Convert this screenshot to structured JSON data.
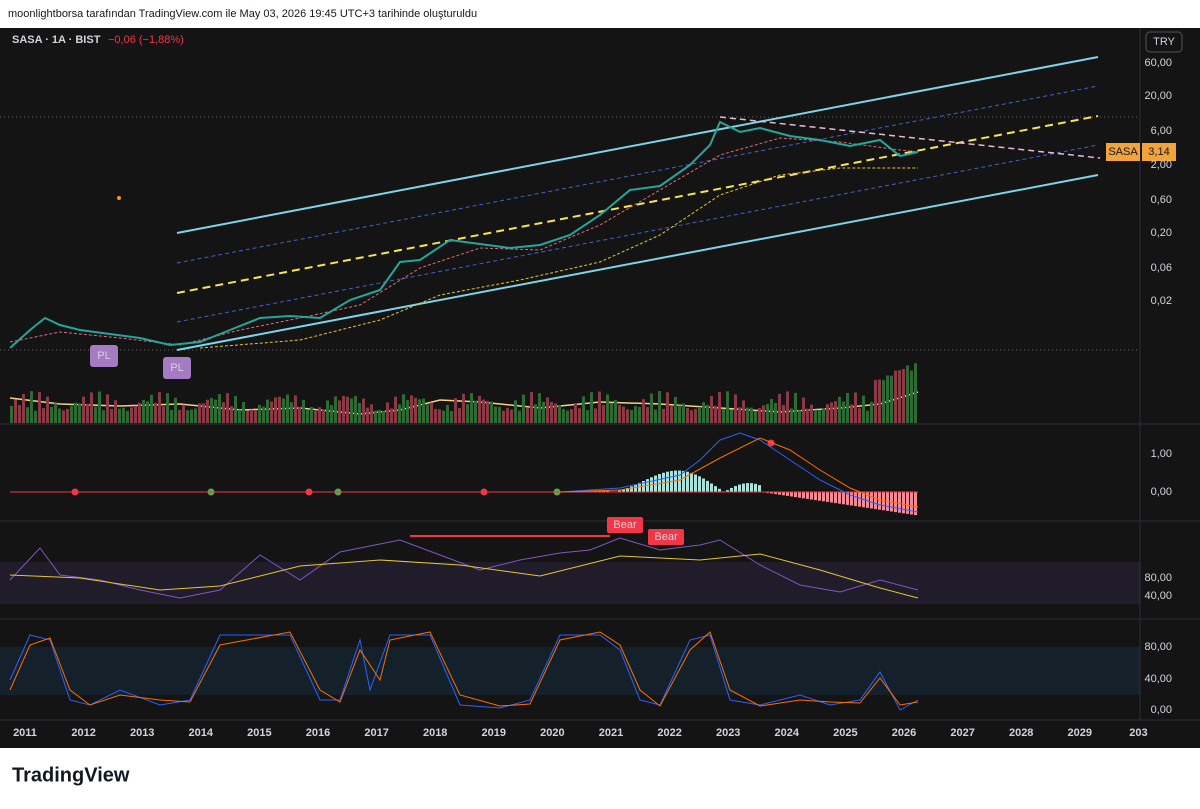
{
  "header": {
    "caption": "moonlightborsa tarafından TradingView.com ile May 03, 2026 19:45 UTC+3 tarihinde oluşturuldu"
  },
  "symbol": {
    "name": "SASA · 1A · BIST",
    "change": "−0,06 (−1,88%)"
  },
  "currency": "TRY",
  "price_axis": [
    "60,00",
    "20,00",
    "6,00",
    "2,00",
    "0,60",
    "0,20",
    "0,06",
    "0,02"
  ],
  "price_tag": {
    "symbol": "SASA",
    "value": "3,14"
  },
  "macd_axis": [
    "1,00",
    "0,00"
  ],
  "rsi_axis": [
    "80,00",
    "40,00"
  ],
  "stoch_axis": [
    "80,00",
    "40,00",
    "0,00"
  ],
  "time_axis": [
    "2011",
    "2012",
    "2013",
    "2014",
    "2015",
    "2016",
    "2017",
    "2018",
    "2019",
    "2020",
    "2021",
    "2022",
    "2023",
    "2024",
    "2025",
    "2026",
    "2027",
    "2028",
    "2029",
    "203"
  ],
  "markers": {
    "pl": [
      "PL",
      "PL"
    ],
    "bear": [
      "Bear",
      "Bear"
    ]
  },
  "brand": "TradingView"
}
